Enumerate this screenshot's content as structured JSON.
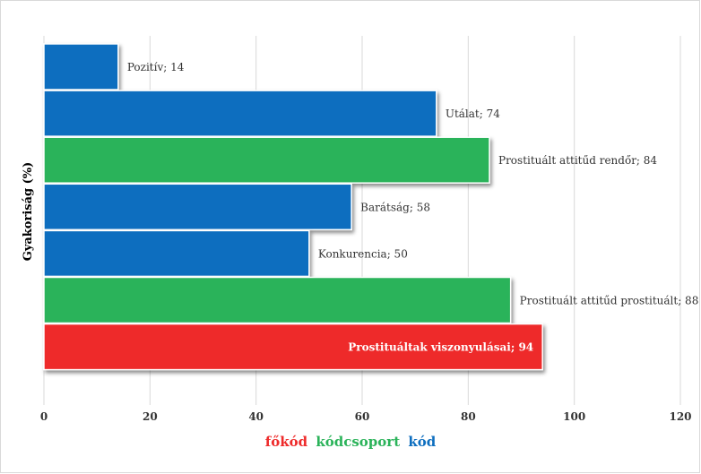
{
  "chart_data": {
    "type": "bar",
    "orientation": "horizontal",
    "ylabel": "Gyakoriság (%)",
    "xlabel": "",
    "xlim": [
      0,
      120
    ],
    "xticks": [
      0,
      20,
      40,
      60,
      80,
      100,
      120
    ],
    "grid": true,
    "bars": [
      {
        "label": "Pozitív; 14",
        "value": 14,
        "kind": "kod"
      },
      {
        "label": "Utálat; 74",
        "value": 74,
        "kind": "kod"
      },
      {
        "label": "Prostituált attitűd rendőr; 84",
        "value": 84,
        "kind": "kodcsoport"
      },
      {
        "label": "Barátság; 58",
        "value": 58,
        "kind": "kod"
      },
      {
        "label": "Konkurencia; 50",
        "value": 50,
        "kind": "kod"
      },
      {
        "label": "Prostituált attitűd prostituált; 88",
        "value": 88,
        "kind": "kodcsoport"
      },
      {
        "label": "Prostituáltak viszonyulásai; 94",
        "value": 94,
        "kind": "fokod"
      }
    ],
    "colors": {
      "fokod": "#ee2b2b",
      "kodcsoport": "#2bb35a",
      "kod": "#0d6ebf"
    }
  },
  "legend": {
    "fokod": "főkód",
    "kodcsoport": "kódcsoport",
    "kod": "kód"
  }
}
